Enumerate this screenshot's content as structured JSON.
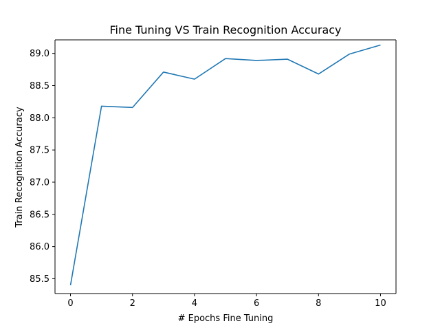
{
  "chart_data": {
    "type": "line",
    "title": "Fine Tuning VS Train Recognition Accuracy",
    "xlabel": "# Epochs Fine Tuning",
    "ylabel": "Train Recognition Accuracy",
    "xlim": [
      -0.5,
      10.5
    ],
    "ylim": [
      85.27,
      89.21
    ],
    "xticks": [
      0,
      2,
      4,
      6,
      8,
      10
    ],
    "xtick_labels": [
      "0",
      "2",
      "4",
      "6",
      "8",
      "10"
    ],
    "yticks": [
      85.5,
      86.0,
      86.5,
      87.0,
      87.5,
      88.0,
      88.5,
      89.0
    ],
    "ytick_labels": [
      "85.5",
      "86.0",
      "86.5",
      "87.0",
      "87.5",
      "88.0",
      "88.5",
      "89.0"
    ],
    "grid": false,
    "series": [
      {
        "color": "#1f77b4",
        "x": [
          0,
          1,
          2,
          3,
          4,
          5,
          6,
          7,
          8,
          9,
          10
        ],
        "y": [
          85.4,
          88.18,
          88.16,
          88.71,
          88.6,
          88.92,
          88.89,
          88.91,
          88.68,
          88.99,
          89.13
        ]
      }
    ]
  }
}
